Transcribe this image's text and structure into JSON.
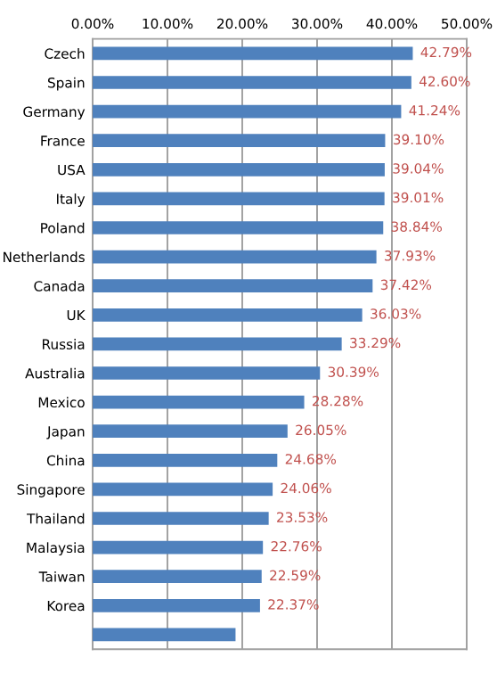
{
  "chart_data": {
    "type": "bar",
    "orientation": "horizontal",
    "categories": [
      "Czech",
      "Spain",
      "Germany",
      "France",
      "USA",
      "Italy",
      "Poland",
      "Netherlands",
      "Canada",
      "UK",
      "Russia",
      "Australia",
      "Mexico",
      "Japan",
      "China",
      "Singapore",
      "Thailand",
      "Malaysia",
      "Taiwan",
      "Korea",
      null
    ],
    "values": [
      42.79,
      42.6,
      41.24,
      39.1,
      39.04,
      39.01,
      38.84,
      37.93,
      37.42,
      36.03,
      33.29,
      30.39,
      28.28,
      26.05,
      24.68,
      24.06,
      23.53,
      22.76,
      22.59,
      22.37,
      19.1
    ],
    "value_labels": [
      "42.79%",
      "42.60%",
      "41.24%",
      "39.10%",
      "39.04%",
      "39.01%",
      "38.84%",
      "37.93%",
      "37.42%",
      "36.03%",
      "33.29%",
      "30.39%",
      "28.28%",
      "26.05%",
      "24.68%",
      "24.06%",
      "23.53%",
      "22.76%",
      "22.59%",
      "22.37%",
      null
    ],
    "color": "#4f81bd",
    "xlim": [
      0,
      50
    ],
    "xticks": [
      {
        "value": 0,
        "label": "0.00%"
      },
      {
        "value": 10,
        "label": "10.00%"
      },
      {
        "value": 20,
        "label": "20.00%"
      },
      {
        "value": 30,
        "label": "30.00%"
      },
      {
        "value": 40,
        "label": "40.00%"
      },
      {
        "value": 50,
        "label": "50.00%"
      }
    ],
    "grid": "x"
  }
}
